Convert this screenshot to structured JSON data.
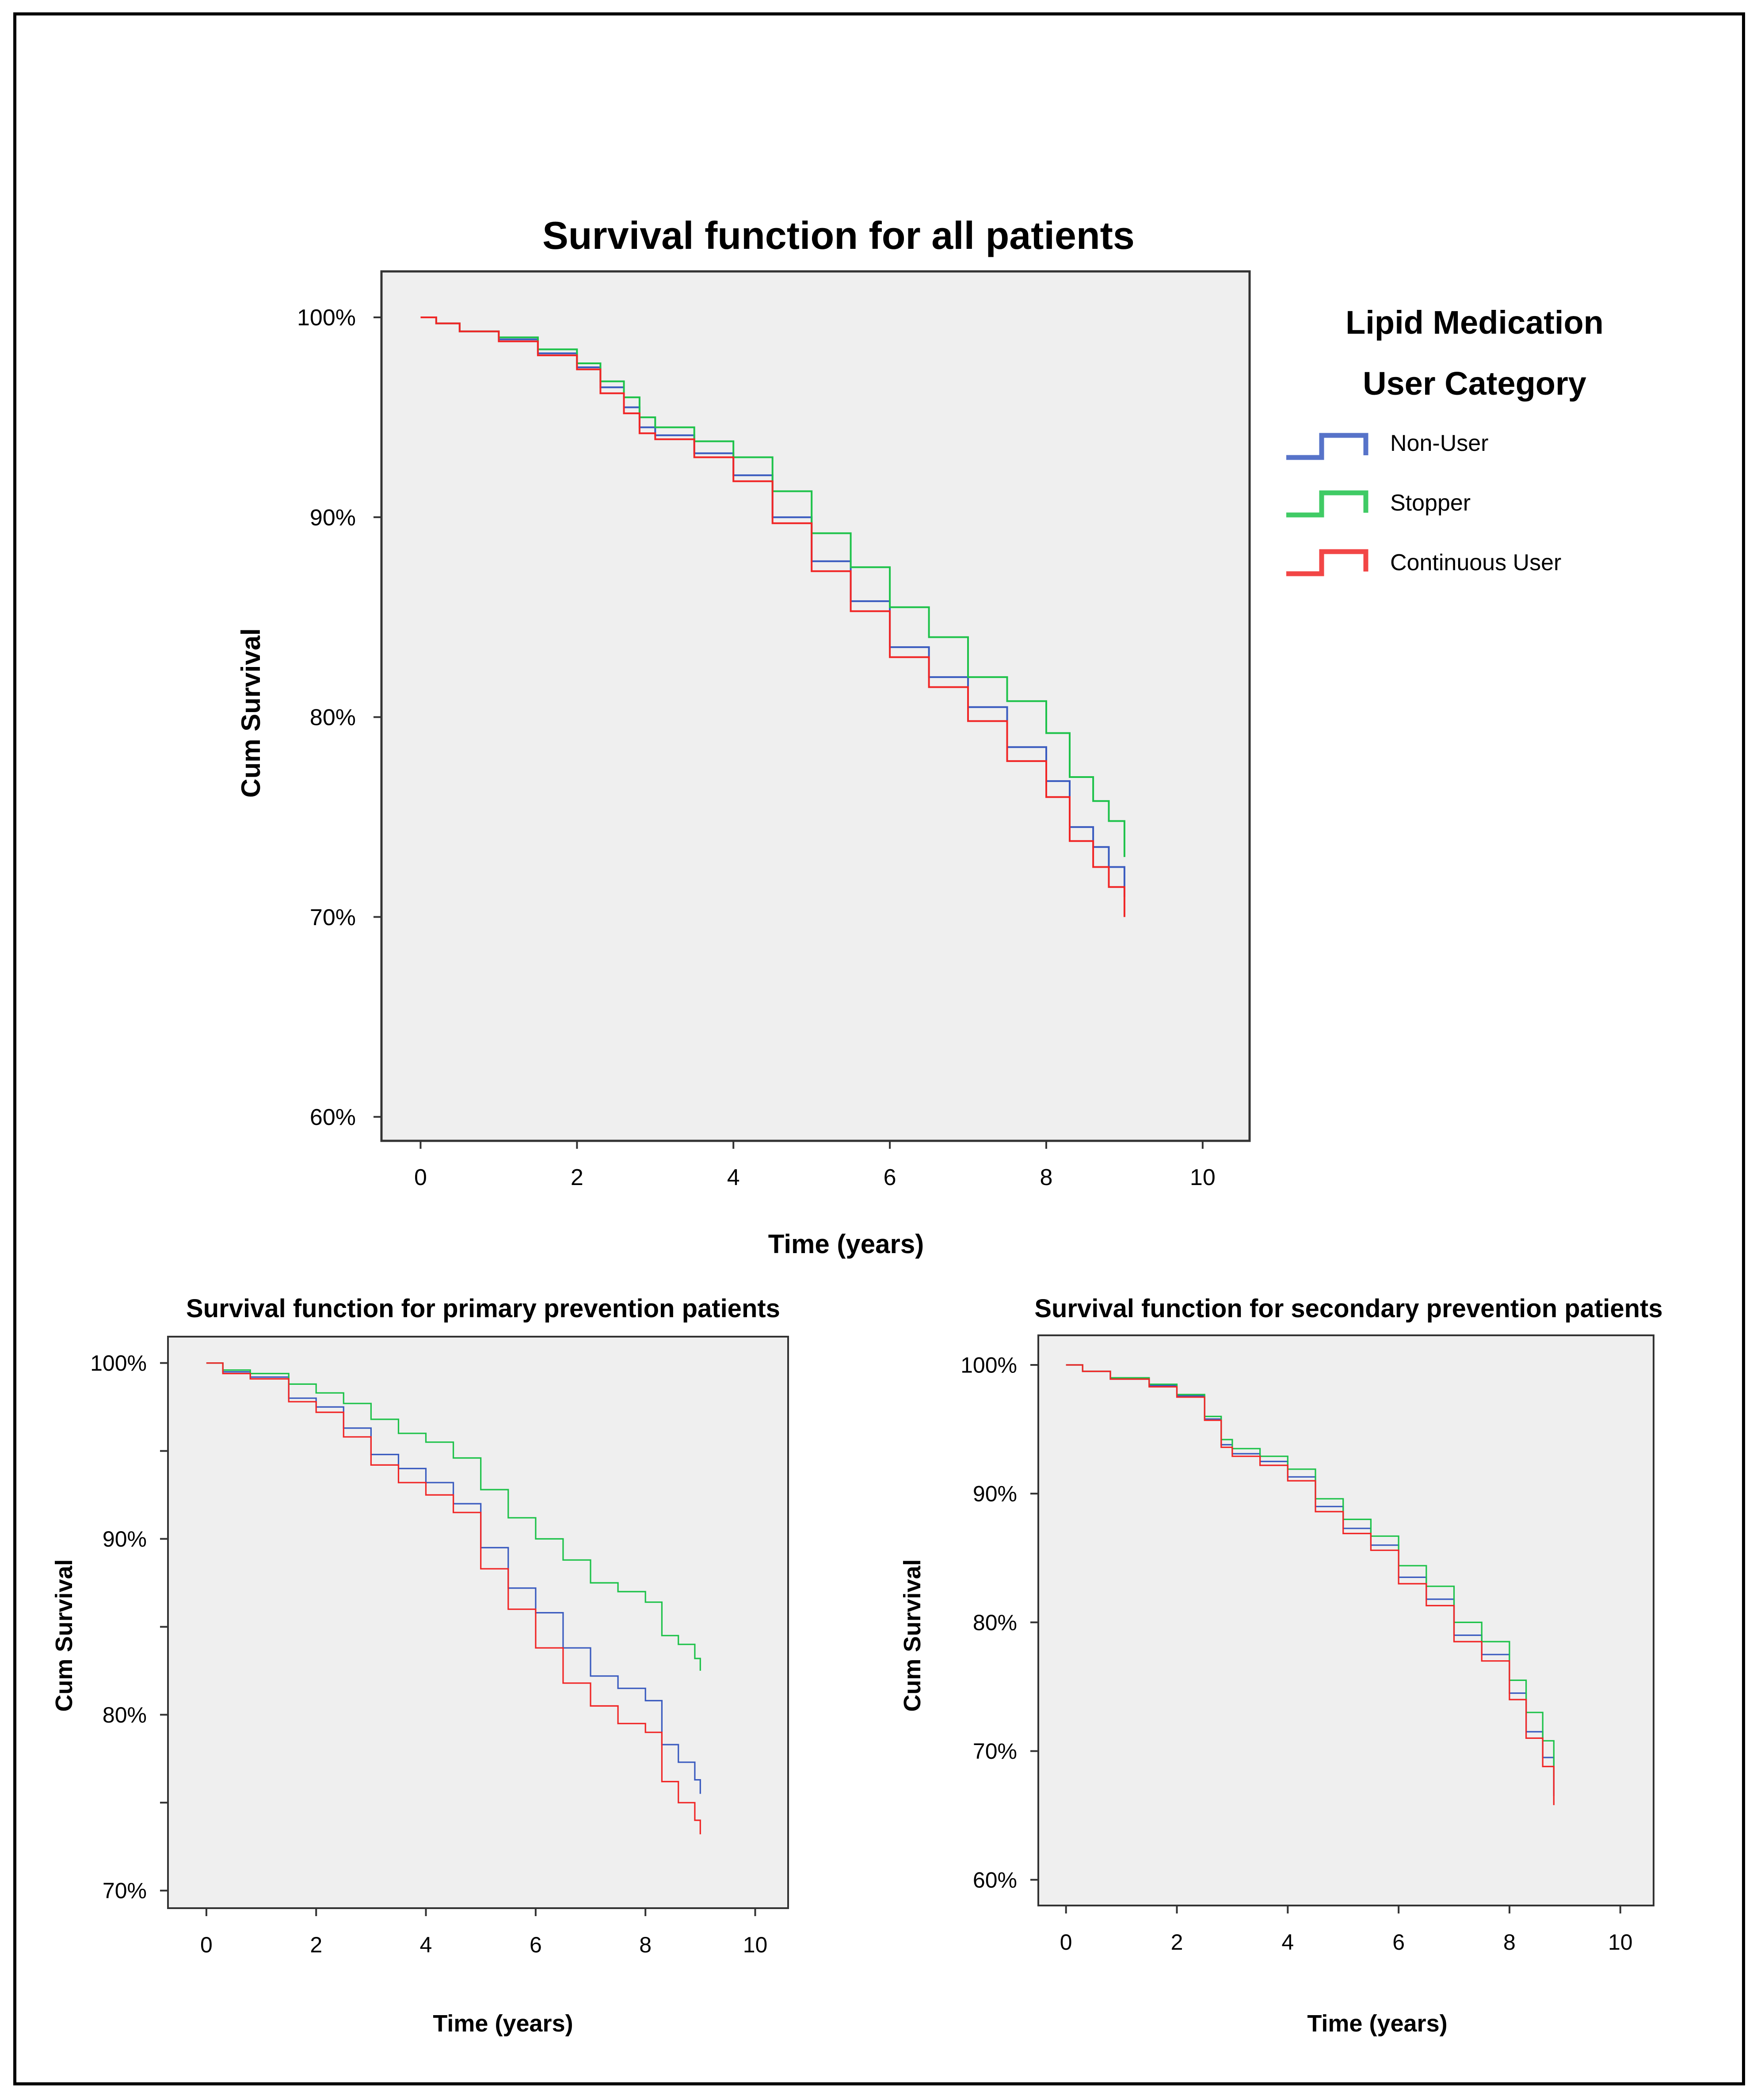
{
  "colors": {
    "non_user": "#3a5bbf",
    "stopper": "#1ec24a",
    "continuous": "#f02626",
    "plot_bg": "#efefef"
  },
  "legend": {
    "title_line1": "Lipid Medication",
    "title_line2": "User Category",
    "items": [
      {
        "label": "Non-User",
        "color": "#3a5bbf"
      },
      {
        "label": "Stopper",
        "color": "#1ec24a"
      },
      {
        "label": "Continuous User",
        "color": "#f02626"
      }
    ]
  },
  "chart_data": [
    {
      "type": "line",
      "title": "Survival function for all patients",
      "xlabel": "Time (years)",
      "ylabel": "Cum Survival",
      "xlim": [
        -0.5,
        10.6
      ],
      "ylim": [
        58.8,
        102.3
      ],
      "xticks": [
        0,
        2,
        4,
        6,
        8,
        10
      ],
      "yticks": [
        60,
        70,
        80,
        90,
        100
      ],
      "ytick_labels": [
        "60%",
        "70%",
        "80%",
        "90%",
        "100%"
      ],
      "minor_yticks": [],
      "series": [
        {
          "name": "Non-User",
          "color": "#3a5bbf",
          "x": [
            0,
            0.2,
            0.5,
            1.0,
            1.5,
            2.0,
            2.3,
            2.6,
            2.8,
            3.0,
            3.5,
            4.0,
            4.5,
            5.0,
            5.5,
            6.0,
            6.5,
            7.0,
            7.5,
            8.0,
            8.3,
            8.6,
            8.8,
            9.0
          ],
          "y": [
            100,
            99.7,
            99.3,
            98.9,
            98.2,
            97.5,
            96.5,
            95.5,
            94.5,
            94.1,
            93.2,
            92.1,
            90.0,
            87.8,
            85.8,
            83.5,
            82.0,
            80.5,
            78.5,
            76.8,
            74.5,
            73.5,
            72.5,
            71.0
          ]
        },
        {
          "name": "Stopper",
          "color": "#1ec24a",
          "x": [
            0,
            0.2,
            0.5,
            1.0,
            1.5,
            2.0,
            2.3,
            2.6,
            2.8,
            3.0,
            3.5,
            4.0,
            4.5,
            5.0,
            5.5,
            6.0,
            6.5,
            7.0,
            7.5,
            8.0,
            8.3,
            8.6,
            8.8,
            9.0
          ],
          "y": [
            100,
            99.7,
            99.3,
            99.0,
            98.4,
            97.7,
            96.8,
            96.0,
            95.0,
            94.5,
            93.8,
            93.0,
            91.3,
            89.2,
            87.5,
            85.5,
            84.0,
            82.0,
            80.8,
            79.2,
            77.0,
            75.8,
            74.8,
            73.0
          ]
        },
        {
          "name": "Continuous User",
          "color": "#f02626",
          "x": [
            0,
            0.2,
            0.5,
            1.0,
            1.5,
            2.0,
            2.3,
            2.6,
            2.8,
            3.0,
            3.5,
            4.0,
            4.5,
            5.0,
            5.5,
            6.0,
            6.5,
            7.0,
            7.5,
            8.0,
            8.3,
            8.6,
            8.8,
            9.0
          ],
          "y": [
            100,
            99.7,
            99.3,
            98.8,
            98.1,
            97.4,
            96.2,
            95.2,
            94.2,
            93.9,
            93.0,
            91.8,
            89.7,
            87.3,
            85.3,
            83.0,
            81.5,
            79.8,
            77.8,
            76.0,
            73.8,
            72.5,
            71.5,
            70.0
          ]
        }
      ]
    },
    {
      "type": "line",
      "title": "Survival function for primary prevention patients",
      "xlabel": "Time (years)",
      "ylabel": "Cum Survival",
      "xlim": [
        -0.7,
        10.6
      ],
      "ylim": [
        69.0,
        101.5
      ],
      "xticks": [
        0,
        2,
        4,
        6,
        8,
        10
      ],
      "yticks": [
        70,
        80,
        90,
        100
      ],
      "ytick_labels": [
        "70%",
        "80%",
        "90%",
        "100%"
      ],
      "minor_yticks": [
        75,
        85,
        95
      ],
      "series": [
        {
          "name": "Non-User",
          "color": "#3a5bbf",
          "x": [
            0,
            0.3,
            0.8,
            1.5,
            2.0,
            2.5,
            3.0,
            3.5,
            4.0,
            4.5,
            5.0,
            5.5,
            6.0,
            6.5,
            7.0,
            7.5,
            8.0,
            8.3,
            8.6,
            8.9,
            9.0
          ],
          "y": [
            100,
            99.5,
            99.2,
            98.0,
            97.5,
            96.3,
            94.8,
            94.0,
            93.2,
            92.0,
            89.5,
            87.2,
            85.8,
            83.8,
            82.2,
            81.5,
            80.8,
            78.3,
            77.3,
            76.3,
            75.5
          ]
        },
        {
          "name": "Stopper",
          "color": "#1ec24a",
          "x": [
            0,
            0.3,
            0.8,
            1.5,
            2.0,
            2.5,
            3.0,
            3.5,
            4.0,
            4.5,
            5.0,
            5.5,
            6.0,
            6.5,
            7.0,
            7.5,
            8.0,
            8.3,
            8.6,
            8.9,
            9.0
          ],
          "y": [
            100,
            99.6,
            99.4,
            98.8,
            98.3,
            97.7,
            96.8,
            96.0,
            95.5,
            94.6,
            92.8,
            91.2,
            90.0,
            88.8,
            87.5,
            87.0,
            86.4,
            84.5,
            84.0,
            83.2,
            82.5
          ]
        },
        {
          "name": "Continuous User",
          "color": "#f02626",
          "x": [
            0,
            0.3,
            0.8,
            1.5,
            2.0,
            2.5,
            3.0,
            3.5,
            4.0,
            4.5,
            5.0,
            5.5,
            6.0,
            6.5,
            7.0,
            7.5,
            8.0,
            8.3,
            8.6,
            8.9,
            9.0
          ],
          "y": [
            100,
            99.4,
            99.1,
            97.8,
            97.2,
            95.8,
            94.2,
            93.2,
            92.5,
            91.5,
            88.3,
            86.0,
            83.8,
            81.8,
            80.5,
            79.5,
            79.0,
            76.2,
            75.0,
            74.0,
            73.2
          ]
        }
      ]
    },
    {
      "type": "line",
      "title": "Survival function for secondary prevention patients",
      "xlabel": "Time (years)",
      "ylabel": "Cum Survival",
      "xlim": [
        -0.5,
        10.6
      ],
      "ylim": [
        58.0,
        102.3
      ],
      "xticks": [
        0,
        2,
        4,
        6,
        8,
        10
      ],
      "yticks": [
        60,
        70,
        80,
        90,
        100
      ],
      "ytick_labels": [
        "60%",
        "70%",
        "80%",
        "90%",
        "100%"
      ],
      "minor_yticks": [],
      "series": [
        {
          "name": "Non-User",
          "color": "#3a5bbf",
          "x": [
            0,
            0.3,
            0.8,
            1.5,
            2.0,
            2.5,
            2.8,
            3.0,
            3.5,
            4.0,
            4.5,
            5.0,
            5.5,
            6.0,
            6.5,
            7.0,
            7.5,
            8.0,
            8.3,
            8.6,
            8.8
          ],
          "y": [
            100,
            99.5,
            98.9,
            98.4,
            97.6,
            95.8,
            93.8,
            93.1,
            92.5,
            91.3,
            89.0,
            87.3,
            86.0,
            83.5,
            81.8,
            79.0,
            77.5,
            74.5,
            71.5,
            69.5,
            66.5
          ]
        },
        {
          "name": "Stopper",
          "color": "#1ec24a",
          "x": [
            0,
            0.3,
            0.8,
            1.5,
            2.0,
            2.5,
            2.8,
            3.0,
            3.5,
            4.0,
            4.5,
            5.0,
            5.5,
            6.0,
            6.5,
            7.0,
            7.5,
            8.0,
            8.3,
            8.6,
            8.8
          ],
          "y": [
            100,
            99.5,
            99.0,
            98.5,
            97.7,
            96.0,
            94.2,
            93.5,
            92.9,
            91.9,
            89.6,
            88.0,
            86.7,
            84.4,
            82.8,
            80.0,
            78.5,
            75.5,
            73.0,
            70.8,
            68.0
          ]
        },
        {
          "name": "Continuous User",
          "color": "#f02626",
          "x": [
            0,
            0.3,
            0.8,
            1.5,
            2.0,
            2.5,
            2.8,
            3.0,
            3.5,
            4.0,
            4.5,
            5.0,
            5.5,
            6.0,
            6.5,
            7.0,
            7.5,
            8.0,
            8.3,
            8.6,
            8.8
          ],
          "y": [
            100,
            99.5,
            98.9,
            98.3,
            97.5,
            95.7,
            93.6,
            92.9,
            92.2,
            91.0,
            88.6,
            86.9,
            85.6,
            83.0,
            81.3,
            78.5,
            77.0,
            74.0,
            71.0,
            68.8,
            65.8
          ]
        }
      ]
    }
  ]
}
